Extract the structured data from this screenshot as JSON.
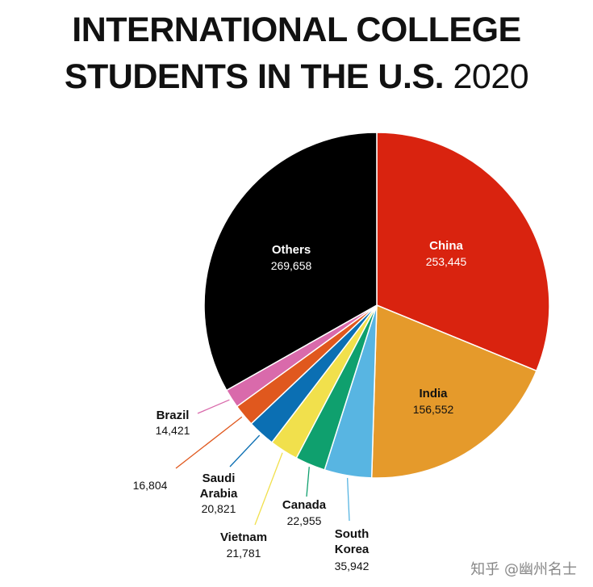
{
  "chart_data": {
    "type": "pie",
    "title": "INTERNATIONAL COLLEGE\nSTUDENTS IN THE U.S.",
    "subtitle": "2020",
    "categories": [
      "China",
      "India",
      "South Korea",
      "Canada",
      "Vietnam",
      "Saudi Arabia",
      null,
      "Brazil",
      "Others"
    ],
    "values": [
      253445,
      156552,
      35942,
      22955,
      21781,
      20821,
      16804,
      14421,
      269658
    ],
    "value_labels": [
      "253,445",
      "156,552",
      "35,942",
      "22,955",
      "21,781",
      "20,821",
      "16,804",
      "14,421",
      "269,658"
    ],
    "colors": [
      "#d9230f",
      "#e59a2b",
      "#58b5e2",
      "#0fa06e",
      "#f1e04c",
      "#0b6fb3",
      "#e0581e",
      "#d96aab",
      "#000000"
    ]
  },
  "watermark": "知乎 @幽州名士"
}
